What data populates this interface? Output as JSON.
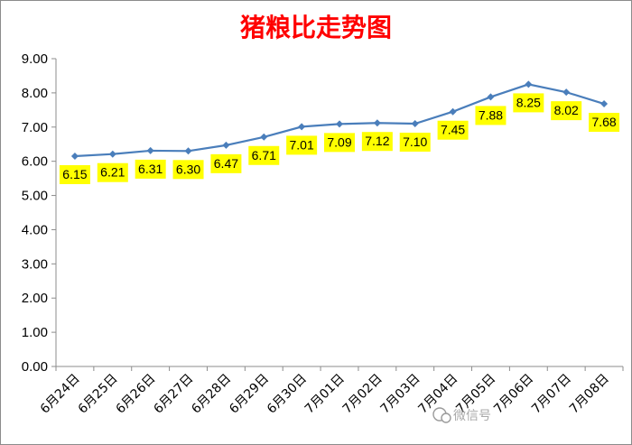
{
  "chart_data": {
    "type": "line",
    "title": "猪粮比走势图",
    "categories": [
      "6月24日",
      "6月25日",
      "6月26日",
      "6月27日",
      "6月28日",
      "6月29日",
      "6月30日",
      "7月01日",
      "7月02日",
      "7月03日",
      "7月04日",
      "7月05日",
      "7月06日",
      "7月07日",
      "7月08日"
    ],
    "values": [
      6.15,
      6.21,
      6.31,
      6.3,
      6.47,
      6.71,
      7.01,
      7.09,
      7.12,
      7.1,
      7.45,
      7.88,
      8.25,
      8.02,
      7.68
    ],
    "yticks": [
      "0.00",
      "1.00",
      "2.00",
      "3.00",
      "4.00",
      "5.00",
      "6.00",
      "7.00",
      "8.00",
      "9.00"
    ],
    "ylim": [
      0,
      9
    ],
    "grid": false,
    "legend": "none",
    "line_color": "#4a7ebb",
    "label_bg": "#ffff00"
  },
  "watermark": {
    "text": "微信号",
    "icon": "wechat-icon"
  }
}
